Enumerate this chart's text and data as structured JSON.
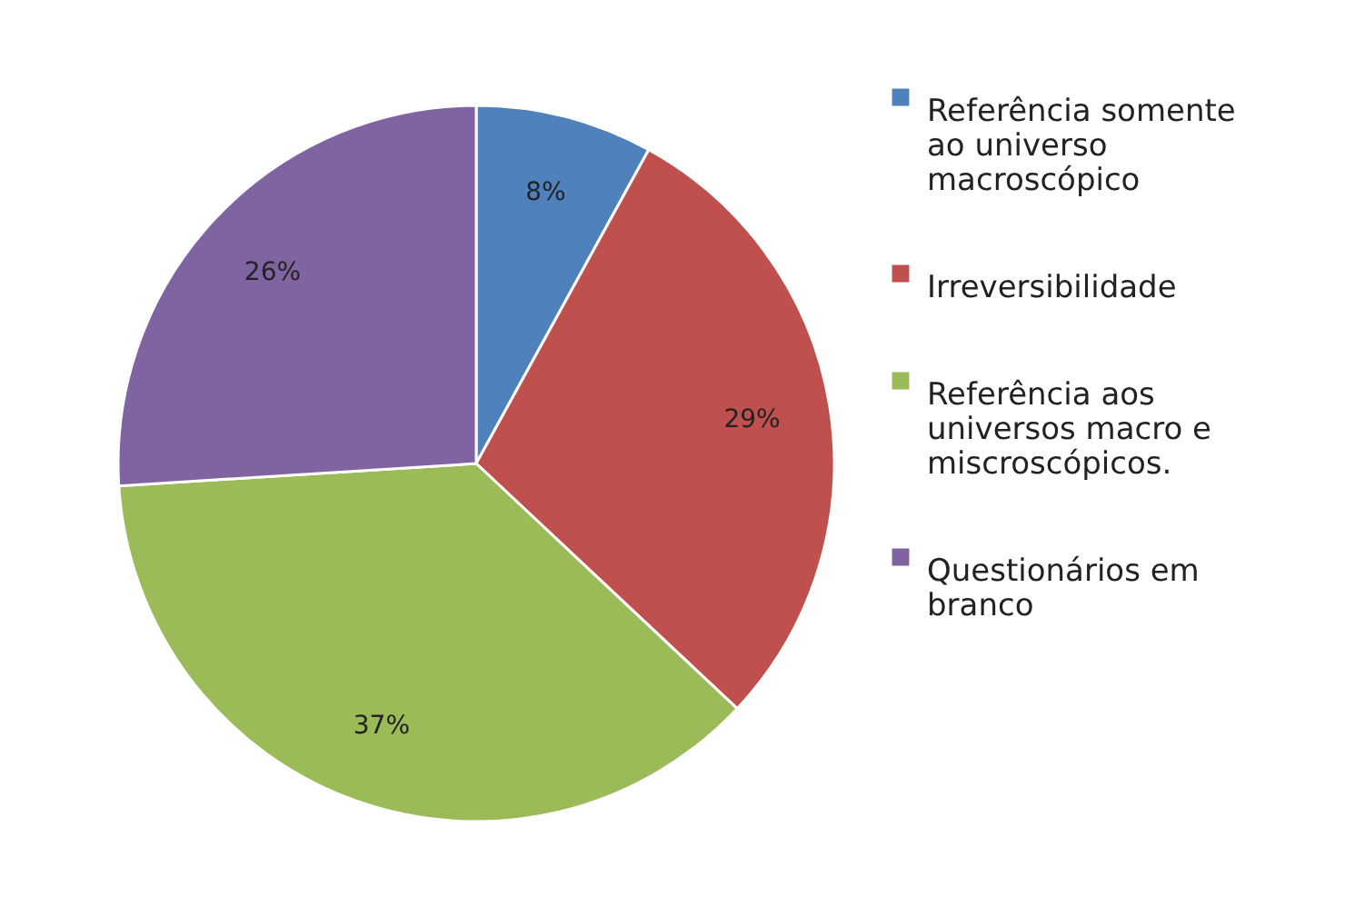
{
  "chart_data": {
    "type": "pie",
    "categories": [
      "Referência somente ao universo macroscópico",
      "Irreversibilidade",
      "Referência aos universos macro e miscroscópicos.",
      "Questionários em branco"
    ],
    "values": [
      8,
      29,
      37,
      26
    ],
    "colors": [
      "#4f81bd",
      "#c0504d",
      "#9bbb59",
      "#8064a2"
    ],
    "value_labels": [
      "8%",
      "29%",
      "37%",
      "26%"
    ],
    "legend": "right"
  }
}
